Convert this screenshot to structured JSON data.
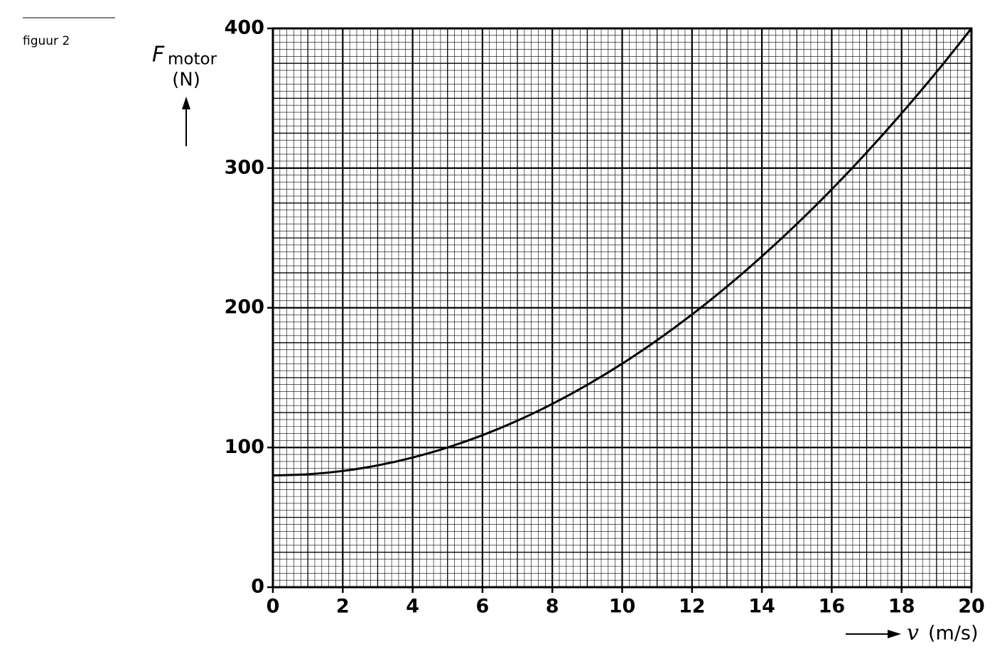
{
  "chart_data": {
    "type": "line",
    "figure_label": "figuur 2",
    "ylabel": {
      "symbol": "F",
      "subscript": "motor",
      "unit": "(N)"
    },
    "xlabel": {
      "symbol": "v",
      "unit": "(m/s)"
    },
    "x": [
      0,
      1,
      2,
      3,
      4,
      5,
      6,
      7,
      8,
      9,
      10,
      11,
      12,
      13,
      14,
      15,
      16,
      17,
      18,
      19,
      20
    ],
    "values": [
      80,
      80.8,
      83.2,
      87.2,
      92.8,
      100,
      108.8,
      119.2,
      131.2,
      144.8,
      160,
      176.8,
      195.2,
      215.2,
      236.8,
      260,
      284.8,
      311.2,
      339.2,
      368.8,
      400
    ],
    "color": "#000000",
    "xlim": [
      0,
      20
    ],
    "xticks": [
      0,
      2,
      4,
      6,
      8,
      10,
      12,
      14,
      16,
      18,
      20
    ],
    "ylim": [
      0,
      400
    ],
    "yticks": [
      0,
      100,
      200,
      300,
      400
    ],
    "grid": true
  }
}
